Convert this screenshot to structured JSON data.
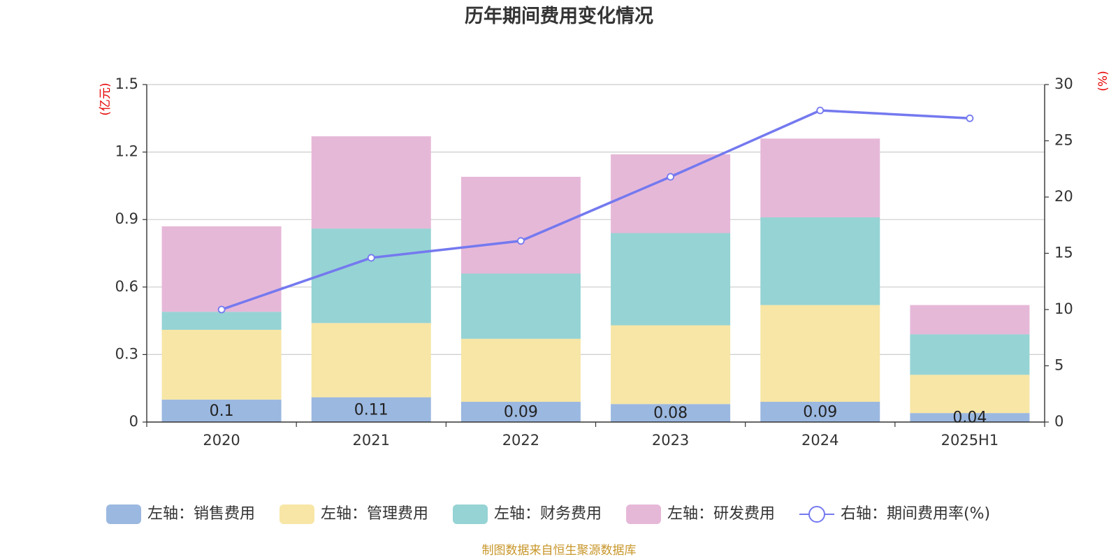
{
  "chart_data": {
    "type": "bar",
    "title": "历年期间费用变化情况",
    "categories": [
      "2020",
      "2021",
      "2022",
      "2023",
      "2024",
      "2025H1"
    ],
    "left_axis": {
      "unit": "(亿元)",
      "ylim": [
        0,
        1.5
      ],
      "ticks": [
        "0",
        "0.3",
        "0.6",
        "0.9",
        "1.2",
        "1.5"
      ]
    },
    "right_axis": {
      "unit": "(%)",
      "ylim": [
        0,
        30
      ],
      "ticks": [
        "0",
        "5",
        "10",
        "15",
        "20",
        "25",
        "30"
      ]
    },
    "stacked": true,
    "series": [
      {
        "name": "左轴：销售费用",
        "type": "bar",
        "axis": "left",
        "color": "#9bb8e0",
        "values": [
          0.1,
          0.11,
          0.09,
          0.08,
          0.09,
          0.04
        ],
        "labels": [
          "0.1",
          "0.11",
          "0.09",
          "0.08",
          "0.09",
          "0.04"
        ]
      },
      {
        "name": "左轴：管理费用",
        "type": "bar",
        "axis": "left",
        "color": "#f7e6a6",
        "values": [
          0.31,
          0.33,
          0.28,
          0.35,
          0.43,
          0.17
        ]
      },
      {
        "name": "左轴：财务费用",
        "type": "bar",
        "axis": "left",
        "color": "#96d3d4",
        "values": [
          0.08,
          0.42,
          0.29,
          0.41,
          0.39,
          0.18
        ]
      },
      {
        "name": "左轴：研发费用",
        "type": "bar",
        "axis": "left",
        "color": "#e6b8d8",
        "values": [
          0.38,
          0.41,
          0.43,
          0.35,
          0.35,
          0.13
        ]
      },
      {
        "name": "右轴：期间费用率(%)",
        "type": "line",
        "axis": "right",
        "color": "#7479ef",
        "values": [
          10.0,
          14.6,
          16.1,
          21.8,
          27.7,
          27.0
        ]
      }
    ],
    "grid": true,
    "legend_position": "bottom"
  },
  "source_note": "制图数据来自恒生聚源数据库"
}
